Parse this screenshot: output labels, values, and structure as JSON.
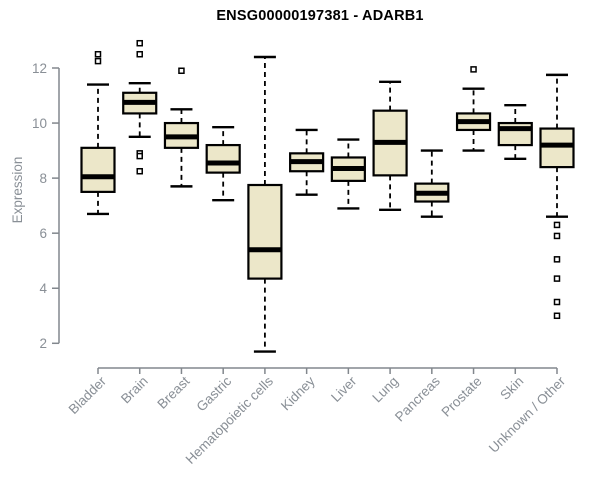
{
  "chart_data": {
    "type": "boxplot",
    "title": "ENSG00000197381 - ADARB1",
    "ylabel": "Expression",
    "xlabel": "",
    "ylim": [
      2,
      12
    ],
    "yticks": [
      2,
      4,
      6,
      8,
      10,
      12
    ],
    "grid": false,
    "legend": "none",
    "categories": [
      "Bladder",
      "Brain",
      "Breast",
      "Gastric",
      "Hematopoietic cells",
      "Kidney",
      "Liver",
      "Lung",
      "Pancreas",
      "Prostate",
      "Skin",
      "Unknown / Other"
    ],
    "series": [
      {
        "name": "Bladder",
        "low": 6.7,
        "q1": 7.5,
        "median": 8.05,
        "q3": 9.1,
        "high": 11.4,
        "outliers": [
          12.5,
          12.25
        ]
      },
      {
        "name": "Brain",
        "low": 9.5,
        "q1": 10.35,
        "median": 10.75,
        "q3": 11.1,
        "high": 11.45,
        "outliers": [
          12.9,
          12.5,
          8.9,
          8.8,
          8.25
        ]
      },
      {
        "name": "Breast",
        "low": 7.7,
        "q1": 9.1,
        "median": 9.5,
        "q3": 10.0,
        "high": 10.5,
        "outliers": [
          11.9
        ]
      },
      {
        "name": "Gastric",
        "low": 7.2,
        "q1": 8.2,
        "median": 8.55,
        "q3": 9.2,
        "high": 9.85,
        "outliers": []
      },
      {
        "name": "Hematopoietic cells",
        "low": 1.7,
        "q1": 4.35,
        "median": 5.4,
        "q3": 7.75,
        "high": 12.4,
        "outliers": []
      },
      {
        "name": "Kidney",
        "low": 7.4,
        "q1": 8.25,
        "median": 8.6,
        "q3": 8.9,
        "high": 9.75,
        "outliers": []
      },
      {
        "name": "Liver",
        "low": 6.9,
        "q1": 7.9,
        "median": 8.35,
        "q3": 8.75,
        "high": 9.4,
        "outliers": []
      },
      {
        "name": "Lung",
        "low": 6.85,
        "q1": 8.1,
        "median": 9.3,
        "q3": 10.45,
        "high": 11.5,
        "outliers": []
      },
      {
        "name": "Pancreas",
        "low": 6.6,
        "q1": 7.15,
        "median": 7.45,
        "q3": 7.8,
        "high": 9.0,
        "outliers": []
      },
      {
        "name": "Prostate",
        "low": 9.0,
        "q1": 9.75,
        "median": 10.05,
        "q3": 10.35,
        "high": 11.25,
        "outliers": [
          11.95
        ]
      },
      {
        "name": "Skin",
        "low": 8.7,
        "q1": 9.2,
        "median": 9.8,
        "q3": 10.0,
        "high": 10.65,
        "outliers": []
      },
      {
        "name": "Unknown / Other",
        "low": 6.6,
        "q1": 8.4,
        "median": 9.2,
        "q3": 9.8,
        "high": 11.75,
        "outliers": [
          6.3,
          5.9,
          5.05,
          4.35,
          3.5,
          3.0
        ]
      }
    ]
  },
  "colors": {
    "box_fill": "#ece7c9",
    "box_stroke": "#000000",
    "median": "#000000",
    "whisker": "#000000",
    "axis_line": "#82878d",
    "axis_text": "#898f96",
    "title_text": "#000000",
    "background": "#ffffff"
  }
}
